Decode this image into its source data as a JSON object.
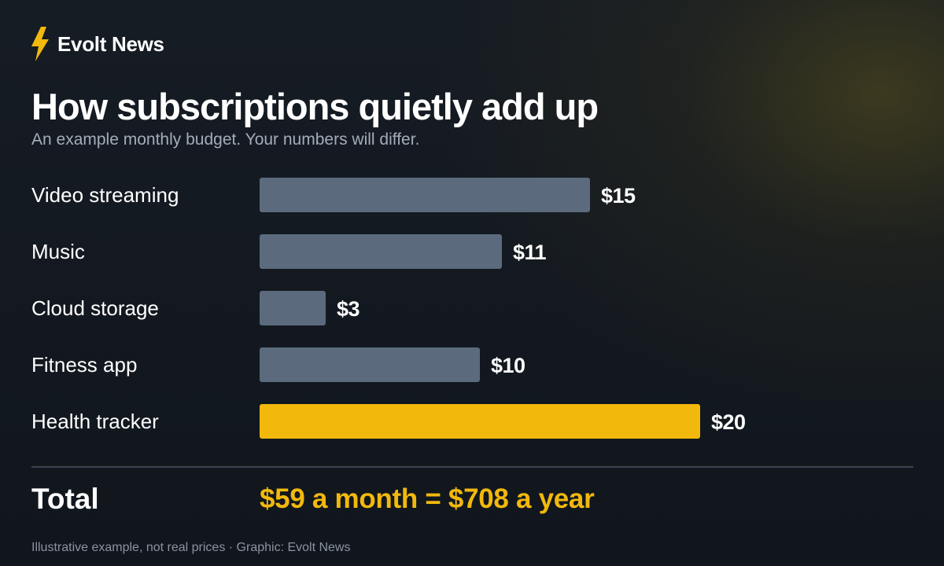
{
  "brand": {
    "name": "Evolt News",
    "icon": "lightning-bolt-icon",
    "icon_color": "#f2b90c"
  },
  "colors": {
    "bar_default": "#5b6b7d",
    "bar_highlight": "#f2b90c",
    "text": "#ffffff",
    "subtext": "#a3adba"
  },
  "chart_data": {
    "type": "bar",
    "orientation": "horizontal",
    "title": "How subscriptions quietly add up",
    "subtitle": "An example monthly budget. Your numbers will differ.",
    "categories": [
      "Video streaming",
      "Music",
      "Cloud storage",
      "Fitness app",
      "Health tracker"
    ],
    "values": [
      15,
      11,
      3,
      10,
      20
    ],
    "value_labels": [
      "$15",
      "$11",
      "$3",
      "$10",
      "$20"
    ],
    "highlight": "Health tracker",
    "xlabel": "",
    "ylabel": "",
    "xlim": [
      0,
      20
    ],
    "grid": false,
    "legend": "none"
  },
  "total": {
    "label": "Total",
    "value": "$59 a month  =  $708 a year"
  },
  "footer": "Illustrative example, not real prices · Graphic: Evolt News"
}
